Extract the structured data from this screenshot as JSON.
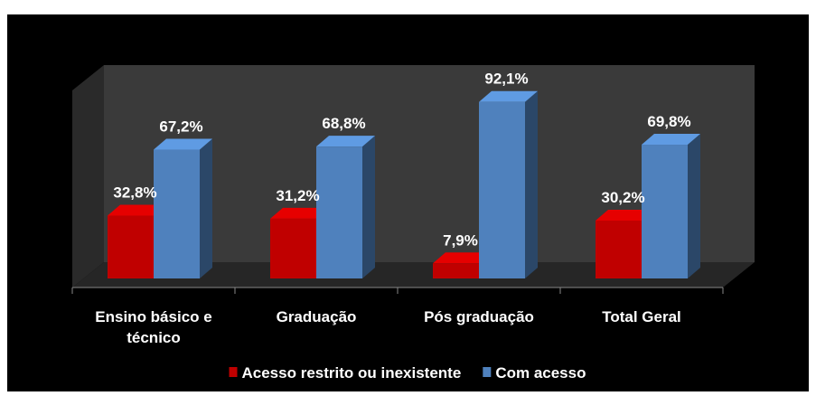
{
  "chart_data": {
    "type": "bar3d",
    "categories": [
      "Ensino básico e técnico",
      "Graduação",
      "Pós graduação",
      "Total Geral"
    ],
    "series": [
      {
        "name": "Acesso restrito ou inexistente",
        "color": "#c00000",
        "values": [
          32.8,
          31.2,
          7.9,
          30.2
        ],
        "value_labels": [
          "32,8%",
          "31,2%",
          "7,9%",
          "30,2%"
        ]
      },
      {
        "name": "Com acesso",
        "color": "#4f81bd",
        "values": [
          67.2,
          68.8,
          92.1,
          69.8
        ],
        "value_labels": [
          "67,2%",
          "68,8%",
          "92,1%",
          "69,8%"
        ]
      }
    ],
    "ylim": [
      0,
      100
    ],
    "legend": "bottom"
  }
}
